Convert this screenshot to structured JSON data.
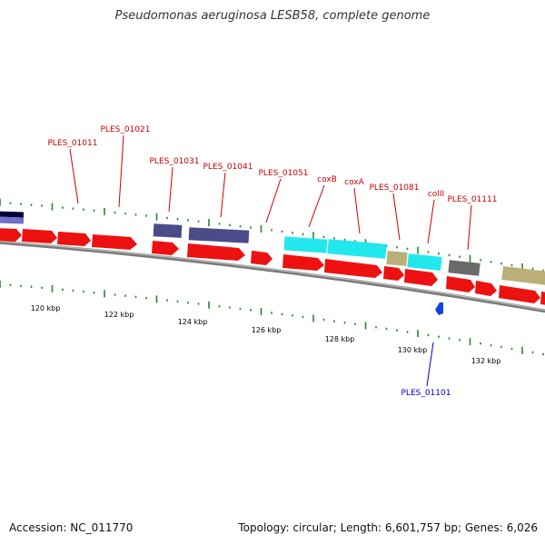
{
  "title": "Pseudomonas aeruginosa LESB58, complete genome",
  "accession": "Accession: NC_011770",
  "stats": "Topology: circular; Length: 6,601,757 bp; Genes: 6,026",
  "colors": {
    "backbone": "#8c8c8c",
    "cds_red": "#ee1111",
    "navy": "#4b4b8a",
    "cyan": "#22e8ee",
    "tan": "#b8b078",
    "gray": "#6a6a6a",
    "tick_green": "#22882f",
    "label_red": "#cc0000",
    "label_blue": "#0000cc"
  },
  "kbp_ticks": [
    {
      "kbp": 120,
      "label": "120 kbp"
    },
    {
      "kbp": 122,
      "label": "122 kbp"
    },
    {
      "kbp": 124,
      "label": "124 kbp"
    },
    {
      "kbp": 126,
      "label": "126 kbp"
    },
    {
      "kbp": 128,
      "label": "128 kbp"
    },
    {
      "kbp": 130,
      "label": "130 kbp"
    },
    {
      "kbp": 132,
      "label": "132 kbp"
    }
  ],
  "gene_labels": [
    {
      "text": "PLES_01011",
      "color": "label_red"
    },
    {
      "text": "PLES_01021",
      "color": "label_red"
    },
    {
      "text": "PLES_01031",
      "color": "label_red"
    },
    {
      "text": "PLES_01041",
      "color": "label_red"
    },
    {
      "text": "PLES_01051",
      "color": "label_red"
    },
    {
      "text": "coxB",
      "color": "label_red"
    },
    {
      "text": "coxA",
      "color": "label_red"
    },
    {
      "text": "PLES_01081",
      "color": "label_red"
    },
    {
      "text": "colII",
      "color": "label_red"
    },
    {
      "text": "PLES_01111",
      "color": "label_red"
    },
    {
      "text": "PLES_01101",
      "color": "label_blue"
    }
  ]
}
